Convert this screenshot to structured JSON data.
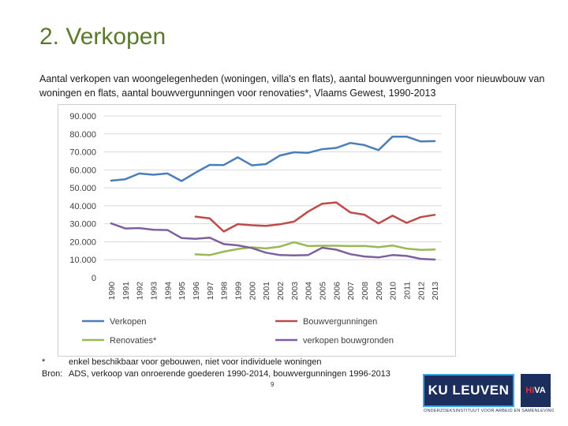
{
  "slide": {
    "title": "2. Verkopen",
    "subtitle": "Aantal verkopen van woongelegenheden (woningen, villa's en flats), aantal bouwvergunningen voor nieuwbouw van woningen en flats, aantal bouwvergunningen voor renovaties*, Vlaams Gewest, 1990-2013",
    "note_marker": "*",
    "note_text": "enkel beschikbaar voor gebouwen, niet voor individuele woningen",
    "source_label": "Bron:",
    "source_text": "ADS, verkoop van onroerende goederen 1990-2014, bouwvergunningen 1996-2013",
    "page_number": "9",
    "logo_ku": "KU LEUVEN",
    "logo_hiva_prefix": "HI",
    "logo_hiva_suffix": "VA",
    "logo_subtext": "ONDERZOEKSINSTITUUT VOOR ARBEID EN SAMENLEVING"
  },
  "chart_data": {
    "type": "line",
    "title": "",
    "xlabel": "",
    "ylabel": "",
    "ylim": [
      0,
      90000
    ],
    "y_ticks": [
      "0",
      "10.000",
      "20.000",
      "30.000",
      "40.000",
      "50.000",
      "60.000",
      "70.000",
      "80.000",
      "90.000"
    ],
    "grid": true,
    "legend_position": "bottom",
    "categories": [
      "1990",
      "1991",
      "1992",
      "1993",
      "1994",
      "1995",
      "1996",
      "1997",
      "1998",
      "1999",
      "2000",
      "2001",
      "2002",
      "2003",
      "2004",
      "2005",
      "2006",
      "2007",
      "2008",
      "2009",
      "2010",
      "2011",
      "2012",
      "2013"
    ],
    "series": [
      {
        "name": "Verkopen",
        "color": "#4a7ebb",
        "values": [
          54000,
          54800,
          58000,
          57300,
          58000,
          53800,
          58500,
          62800,
          62700,
          67000,
          62500,
          63200,
          68000,
          69800,
          69500,
          71500,
          72200,
          75000,
          73800,
          71000,
          78500,
          78500,
          75800,
          76000
        ]
      },
      {
        "name": "Bouwvergunningen",
        "color": "#be4b48",
        "values": [
          null,
          null,
          null,
          null,
          null,
          null,
          34000,
          33000,
          25700,
          29800,
          29200,
          28800,
          29700,
          31200,
          36800,
          41200,
          41900,
          36300,
          35100,
          30200,
          34500,
          30500,
          33700,
          35000
        ]
      },
      {
        "name": "Renovaties*",
        "color": "#98b954",
        "values": [
          null,
          null,
          null,
          null,
          null,
          null,
          13000,
          12600,
          14500,
          16000,
          16900,
          16300,
          17300,
          19700,
          17600,
          17800,
          17800,
          17600,
          17700,
          17000,
          17900,
          16200,
          15500,
          15700
        ]
      },
      {
        "name": "verkopen bouwgronden",
        "color": "#7d60a0",
        "values": [
          30200,
          27400,
          27600,
          26700,
          26500,
          22100,
          21600,
          22300,
          18700,
          18000,
          16500,
          13900,
          12600,
          12400,
          12600,
          16700,
          15600,
          13100,
          11800,
          11300,
          12600,
          12100,
          10500,
          10100
        ]
      }
    ]
  }
}
